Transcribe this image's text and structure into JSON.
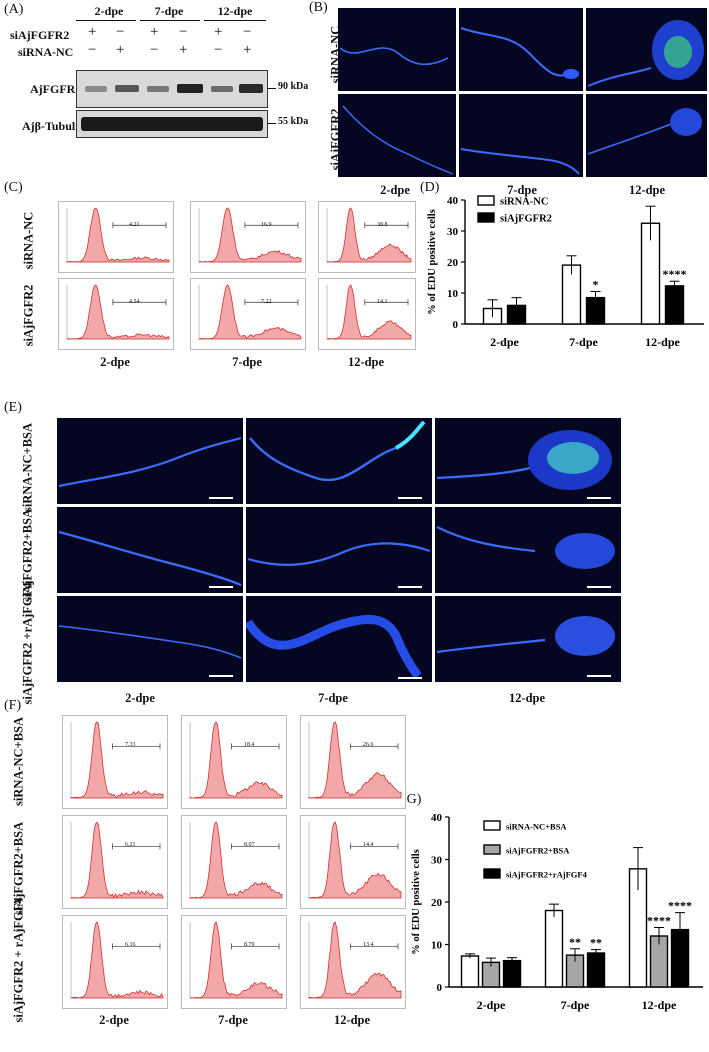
{
  "panel_labels": [
    "(A)",
    "(B)",
    "(C)",
    "(D)",
    "(E)",
    "(F)",
    "(G)"
  ],
  "timepoints": [
    "2-dpe",
    "7-dpe",
    "12-dpe"
  ],
  "blot": {
    "row_labels": [
      "siAjFGFR2",
      "siRNA-NC"
    ],
    "lane_signs": [
      [
        "+",
        "−",
        "+",
        "−",
        "+",
        "−"
      ],
      [
        "−",
        "+",
        "−",
        "+",
        "−",
        "+"
      ]
    ],
    "bands": [
      "AjFGFR2",
      "Ajβ-Tubulin"
    ],
    "markers": [
      "90 kDa",
      "55 kDa"
    ]
  },
  "panel_b_rows": [
    "siRNA-NC",
    "siAjFGFR2"
  ],
  "panel_c": {
    "rows": [
      "siRNA-NC",
      "siAjFGFR2"
    ],
    "gate_values": [
      [
        "4.21",
        "16.9",
        "38.8"
      ],
      [
        "4.54",
        "7.22",
        "14.1"
      ]
    ]
  },
  "panel_e_rows": [
    "siRNA-NC+BSA",
    "siAjFGFR2+BSA",
    "siAjFGFR2 +rAjFGF4"
  ],
  "panel_f": {
    "rows": [
      "siRNA-NC+BSA",
      "siAjFGFR2+BSA",
      "siAjFGFR2 + rAjFGF4"
    ],
    "gate_values": [
      [
        "7.33",
        "18.4",
        "26.6"
      ],
      [
        "6.21",
        "8.07",
        "14.4"
      ],
      [
        "6.16",
        "8.79",
        "13.4"
      ]
    ]
  },
  "chart_data": [
    {
      "id": "D",
      "type": "bar",
      "categories": [
        "2-dpe",
        "7-dpe",
        "12-dpe"
      ],
      "ylabel": "% of EDU positive cells",
      "ylim": [
        0,
        40
      ],
      "yticks": [
        "0",
        "10",
        "20",
        "30",
        "40"
      ],
      "legend_position": "top-left",
      "series": [
        {
          "name": "siRNA-NC",
          "values": [
            5,
            19,
            32.5
          ],
          "errors": [
            2.8,
            3,
            5.5
          ],
          "color": "#ffffff",
          "sig": [
            "",
            "",
            ""
          ]
        },
        {
          "name": "siAjFGFR2",
          "values": [
            6,
            8.5,
            12.3
          ],
          "errors": [
            2.5,
            2,
            1.5
          ],
          "color": "#000000",
          "sig": [
            "",
            "*",
            "****"
          ]
        }
      ]
    },
    {
      "id": "G",
      "type": "bar",
      "categories": [
        "2-dpe",
        "7-dpe",
        "12-dpe"
      ],
      "ylabel": "% of EDU positive cells",
      "ylim": [
        0,
        40
      ],
      "yticks": [
        "0",
        "10",
        "20",
        "30",
        "40"
      ],
      "legend_position": "top-left",
      "series": [
        {
          "name": "siRNA-NC+BSA",
          "values": [
            7.3,
            18,
            27.8
          ],
          "errors": [
            0.5,
            1.5,
            5
          ],
          "color": "#ffffff",
          "sig": [
            "",
            "",
            ""
          ]
        },
        {
          "name": "siAjFGFR2+BSA",
          "values": [
            5.8,
            7.5,
            12
          ],
          "errors": [
            1,
            1.5,
            2
          ],
          "color": "#a6a6a6",
          "sig": [
            "",
            "**",
            "****"
          ]
        },
        {
          "name": "siAjFGFR2+rAjFGF4",
          "values": [
            6.2,
            8,
            13.5
          ],
          "errors": [
            0.7,
            0.8,
            4
          ],
          "color": "#000000",
          "sig": [
            "",
            "**",
            "****"
          ]
        }
      ]
    }
  ]
}
